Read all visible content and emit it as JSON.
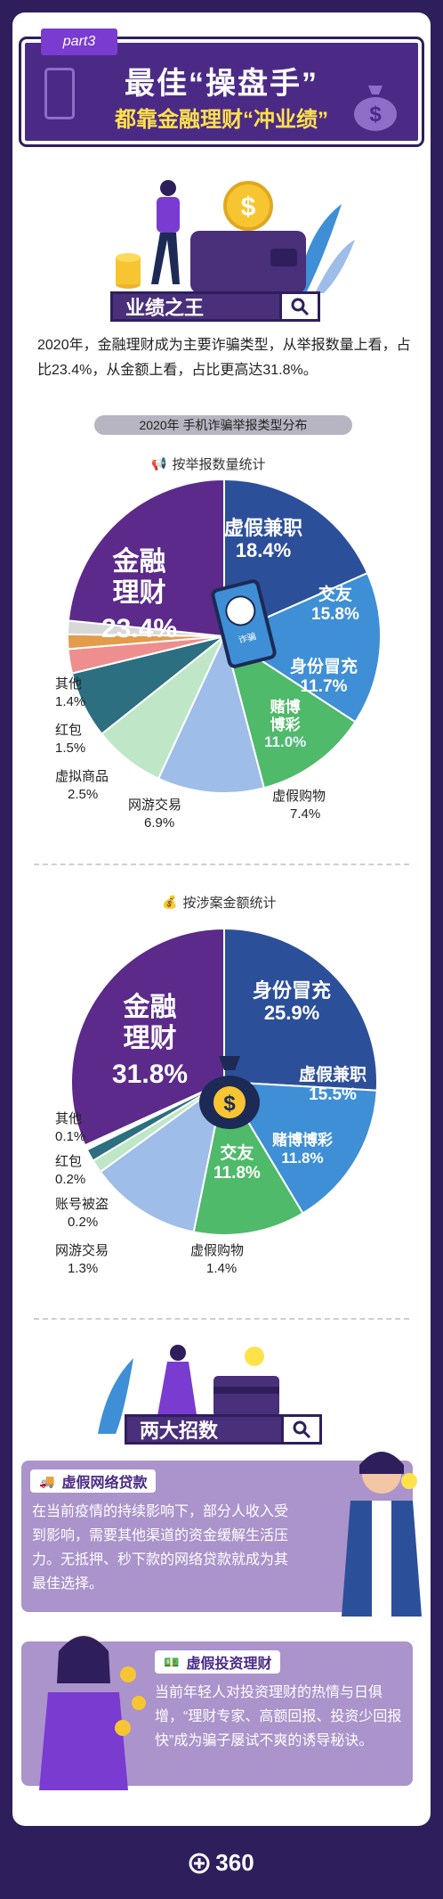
{
  "banner": {
    "part": "part3",
    "title": "最佳“操盘手”",
    "subtitle": "都靠金融理财“冲业绩”"
  },
  "section1": {
    "tag": "业绩之王",
    "intro": "2020年，金融理财成为主要诈骗类型，从举报数量上看，占比23.4%，从金额上看，占比更高达31.8%。",
    "pill": "2020年 手机诈骗举报类型分布"
  },
  "chart_data": [
    {
      "type": "pie",
      "title": "按举报数量统计",
      "slices": [
        {
          "label": "金融理财",
          "value": 23.4,
          "color": "#5b2a8a"
        },
        {
          "label": "虚假兼职",
          "value": 18.4,
          "color": "#2c4f9a"
        },
        {
          "label": "交友",
          "value": 15.8,
          "color": "#3e8fd6"
        },
        {
          "label": "身份冒充",
          "value": 11.7,
          "color": "#4fba6a"
        },
        {
          "label": "赌博博彩",
          "value": 11.0,
          "color": "#9ebde8"
        },
        {
          "label": "虚假购物",
          "value": 7.4,
          "color": "#bfe6c6"
        },
        {
          "label": "网游交易",
          "value": 6.9,
          "color": "#2c6f80"
        },
        {
          "label": "虚拟商品",
          "value": 2.5,
          "color": "#ef8e8e"
        },
        {
          "label": "红包",
          "value": 1.5,
          "color": "#e39b4c"
        },
        {
          "label": "其他",
          "value": 1.4,
          "color": "#d8d8d8"
        }
      ]
    },
    {
      "type": "pie",
      "title": "按涉案金额统计",
      "slices": [
        {
          "label": "金融理财",
          "value": 31.8,
          "color": "#5b2a8a"
        },
        {
          "label": "身份冒充",
          "value": 25.9,
          "color": "#2c4f9a"
        },
        {
          "label": "虚假兼职",
          "value": 15.5,
          "color": "#3e8fd6"
        },
        {
          "label": "赌博博彩",
          "value": 11.8,
          "color": "#4fba6a"
        },
        {
          "label": "交友",
          "value": 11.8,
          "color": "#9ebde8"
        },
        {
          "label": "虚假购物",
          "value": 1.4,
          "color": "#bfe6c6"
        },
        {
          "label": "网游交易",
          "value": 1.3,
          "color": "#2c6f80"
        },
        {
          "label": "账号被盗",
          "value": 0.2,
          "color": "#ef8e8e"
        },
        {
          "label": "红包",
          "value": 0.2,
          "color": "#e39b4c"
        },
        {
          "label": "其他",
          "value": 0.1,
          "color": "#d8d8d8"
        }
      ]
    }
  ],
  "chart1": {
    "heading": "按举报数量统计",
    "labels": {
      "finance": [
        "金融",
        "理财",
        "23.4%"
      ],
      "parttime": [
        "虚假兼职",
        "18.4%"
      ],
      "dating": [
        "交友",
        "15.8%"
      ],
      "identity": [
        "身份冒充",
        "11.7%"
      ],
      "gamble": [
        "赌博",
        "博彩",
        "11.0%"
      ],
      "shopping": [
        "虚假购物",
        "7.4%"
      ],
      "game": [
        "网游交易",
        "6.9%"
      ],
      "virtual": [
        "虚拟商品",
        "2.5%"
      ],
      "redpacket": [
        "红包",
        "1.5%"
      ],
      "other": [
        "其他",
        "1.4%"
      ]
    },
    "phone_caption": "诈骗"
  },
  "chart2": {
    "heading": "按涉案金额统计",
    "labels": {
      "finance": [
        "金融",
        "理财",
        "31.8%"
      ],
      "identity": [
        "身份冒充",
        "25.9%"
      ],
      "parttime": [
        "虚假兼职",
        "15.5%"
      ],
      "gamble": [
        "赌博博彩",
        "11.8%"
      ],
      "dating": [
        "交友",
        "11.8%"
      ],
      "shopping": [
        "虚假购物",
        "1.4%"
      ],
      "game": [
        "网游交易",
        "1.3%"
      ],
      "account": [
        "账号被盗",
        "0.2%"
      ],
      "redpacket": [
        "红包",
        "0.2%"
      ],
      "other": [
        "其他",
        "0.1%"
      ]
    }
  },
  "section2": {
    "tag": "两大招数",
    "method1": {
      "title": "虚假网络贷款",
      "body": "在当前疫情的持续影响下，部分人收入受到影响，需要其他渠道的资金缓解生活压力。无抵押、秒下款的网络贷款就成为其最佳选择。"
    },
    "method2": {
      "title": "虚假投资理财",
      "body": "当前年轻人对投资理财的热情与日俱增，“理财专家、高额回报、投资少回报快”成为骗子屡试不爽的诱导秘诀。"
    }
  },
  "footer": {
    "logo": "360"
  },
  "colors": {
    "dark_purple": "#2e1f5c",
    "brand_purple": "#4b2a86",
    "accent_yellow": "#ffe24a",
    "card_lilac": "#ab93cb"
  }
}
